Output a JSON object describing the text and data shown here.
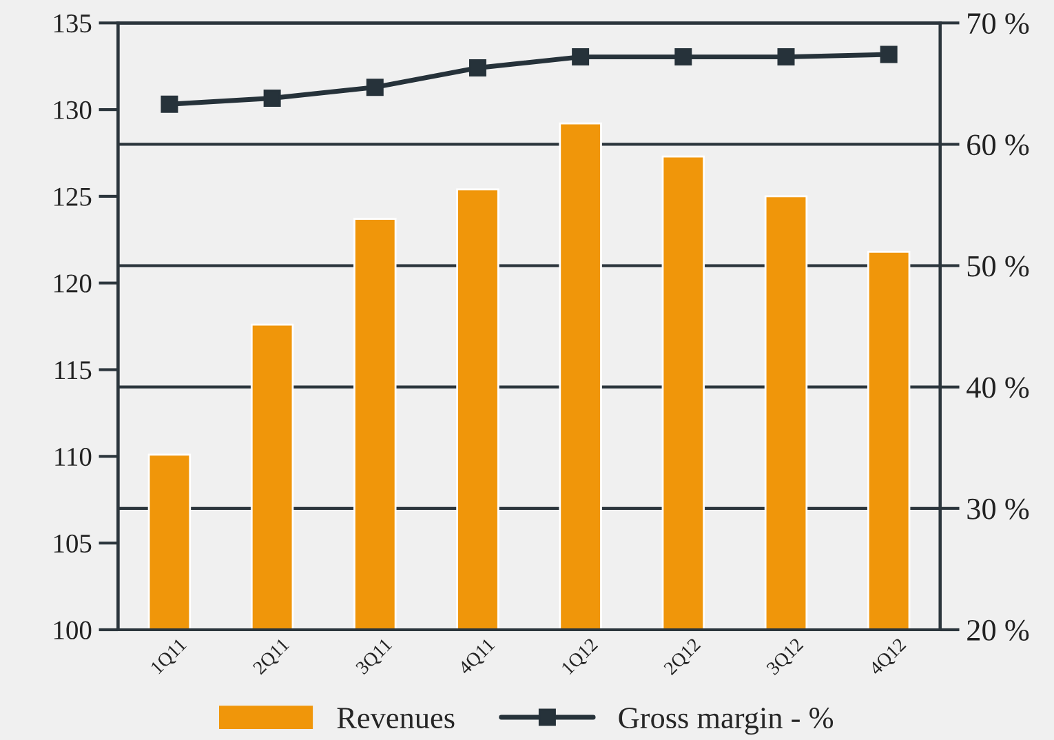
{
  "chart_data": {
    "type": "bar",
    "categories": [
      "1Q11",
      "2Q11",
      "3Q11",
      "4Q11",
      "1Q12",
      "2Q12",
      "3Q12",
      "4Q12"
    ],
    "series": [
      {
        "name": "Revenues",
        "color": "#f0960a",
        "values": [
          110.1,
          117.6,
          123.7,
          125.4,
          129.2,
          127.3,
          125.0,
          121.8
        ]
      },
      {
        "name": "Gross margin - %",
        "type": "line",
        "axis": "y2",
        "color": "#26323a",
        "marker": "square",
        "values": [
          63.3,
          63.8,
          64.7,
          66.3,
          67.2,
          67.2,
          67.2,
          67.4
        ]
      }
    ],
    "ylim": [
      100,
      135
    ],
    "yticks": [
      100,
      105,
      110,
      115,
      120,
      125,
      130,
      135
    ],
    "y2lim": [
      20,
      70
    ],
    "y2ticks": [
      {
        "value": 20,
        "label": "20 %"
      },
      {
        "value": 30,
        "label": "30 %"
      },
      {
        "value": 40,
        "label": "40 %"
      },
      {
        "value": 50,
        "label": "50 %"
      },
      {
        "value": 60,
        "label": "60 %"
      },
      {
        "value": 70,
        "label": "70 %"
      }
    ],
    "grid": "y2",
    "legend": "bottom"
  }
}
